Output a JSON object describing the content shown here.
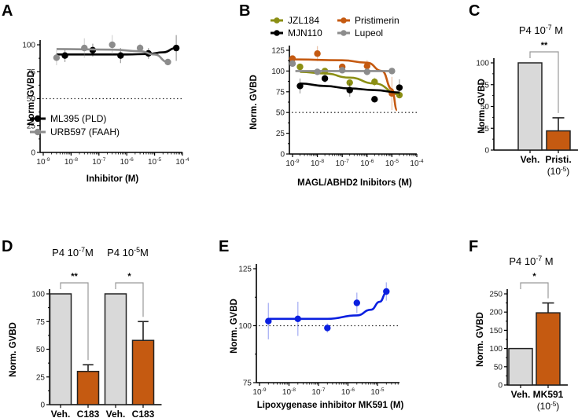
{
  "chart_data": [
    {
      "panel": "A",
      "type": "scatter",
      "xlabel": "Inhibitor (M)",
      "ylabel": "Norm. GVBD",
      "xscale": "log",
      "xlim": [
        1e-09,
        0.0001
      ],
      "ylim": [
        0,
        100
      ],
      "yticks": [
        0,
        25,
        50,
        75,
        100
      ],
      "xtick_labels": [
        "10-9",
        "10-8",
        "10-7",
        "10-6",
        "10-5",
        "10-4"
      ],
      "reference_line": 50,
      "legend": "bottom-left",
      "series": [
        {
          "name": "ML395 (PLD)",
          "color": "#000000",
          "x": [
            6e-09,
            6e-08,
            6e-07,
            6e-06,
            6e-05
          ],
          "y": [
            90,
            95,
            90,
            92,
            97
          ],
          "err": [
            6,
            6,
            7,
            5,
            12
          ],
          "fit": [
            [
              3e-09,
              91
            ],
            [
              1e-06,
              91
            ],
            [
              6e-06,
              91.5
            ],
            [
              2e-05,
              93
            ],
            [
              6e-05,
              97
            ]
          ]
        },
        {
          "name": "URB597 (FAAH)",
          "color": "#8c8c8c",
          "x": [
            3e-09,
            3e-08,
            3e-07,
            3e-06,
            3e-05
          ],
          "y": [
            88,
            97,
            100,
            97,
            84
          ],
          "err": [
            7,
            9,
            9,
            4,
            3
          ],
          "fit": [
            [
              3e-09,
              96
            ],
            [
              3e-07,
              95.5
            ],
            [
              3e-06,
              94
            ],
            [
              1e-05,
              91
            ],
            [
              3e-05,
              84
            ]
          ]
        }
      ]
    },
    {
      "panel": "B",
      "type": "scatter",
      "xlabel": "MAGL/ABHD2 Inibitors (M)",
      "ylabel": "Norm. GVBD",
      "xscale": "log",
      "xlim": [
        1e-09,
        0.0001
      ],
      "ylim": [
        0,
        125
      ],
      "yticks": [
        0,
        25,
        50,
        75,
        100,
        125
      ],
      "xtick_labels": [
        "10-9",
        "10-8",
        "10-7",
        "10-6",
        "10-5",
        "10-4"
      ],
      "reference_line": 50,
      "legend": "top",
      "series": [
        {
          "name": "JZL184",
          "color": "#8b8f14",
          "x": [
            2e-09,
            2e-08,
            2e-07,
            2e-06,
            2e-05
          ],
          "y": [
            105,
            100,
            86,
            87,
            71
          ],
          "err": [
            3,
            3,
            3,
            5,
            3
          ],
          "fit": [
            [
              2e-09,
              99
            ],
            [
              2e-08,
              97
            ],
            [
              2e-07,
              92
            ],
            [
              2e-06,
              85
            ],
            [
              2e-05,
              72
            ]
          ]
        },
        {
          "name": "Pristimerin",
          "color": "#c55a11",
          "x": [
            1e-09,
            1e-08,
            1e-07,
            1e-06,
            1e-05
          ],
          "y": [
            115,
            121,
            105,
            106,
            73
          ],
          "err": [
            2,
            9,
            2,
            7,
            20
          ],
          "fit": [
            [
              1e-09,
              114
            ],
            [
              1e-07,
              113
            ],
            [
              1e-06,
              110
            ],
            [
              4e-06,
              100
            ],
            [
              1e-05,
              78
            ],
            [
              1.6e-05,
              53
            ]
          ]
        },
        {
          "name": "MJN110",
          "color": "#000000",
          "x": [
            2e-09,
            2e-08,
            2e-07,
            2e-06,
            2e-05
          ],
          "y": [
            82,
            91,
            77,
            66,
            80
          ],
          "err": [
            9,
            5,
            8,
            2,
            10
          ],
          "fit": [
            [
              2e-09,
              85
            ],
            [
              2e-08,
              82
            ],
            [
              2e-07,
              79
            ],
            [
              2e-06,
              77
            ],
            [
              2e-05,
              74
            ]
          ]
        },
        {
          "name": "Lupeol",
          "color": "#8c8c8c",
          "x": [
            1e-09,
            1e-08,
            1e-07,
            1e-06,
            1e-05
          ],
          "y": [
            109,
            99,
            101,
            99,
            100
          ],
          "err": [
            2,
            2,
            2,
            2,
            2
          ],
          "fit": [
            [
              1.3e-09,
              100
            ],
            [
              1e-05,
              100
            ]
          ]
        }
      ]
    },
    {
      "panel": "C",
      "type": "bar",
      "title": "P4 10-7 M",
      "ylabel": "Norm. GVBD",
      "ylim": [
        0,
        100
      ],
      "yticks": [
        0,
        25,
        50,
        75,
        100
      ],
      "categories": [
        "Veh.",
        "Pristi."
      ],
      "category_sublabels": [
        "",
        "(10-5)"
      ],
      "values": [
        100,
        22
      ],
      "errors": [
        0,
        15
      ],
      "colors": [
        "#d9d9d9",
        "#c55a11"
      ],
      "significance": "**"
    },
    {
      "panel": "D",
      "type": "bar",
      "titles": [
        "P4 10-7M",
        "P4 10-5M"
      ],
      "ylabel": "Norm. GVBD",
      "ylim": [
        0,
        100
      ],
      "yticks": [
        0,
        25,
        50,
        75,
        100
      ],
      "categories": [
        "Veh.",
        "C183",
        "Veh.",
        "C183"
      ],
      "values": [
        100,
        30,
        100,
        58
      ],
      "errors": [
        0,
        6,
        0,
        17
      ],
      "colors": [
        "#d9d9d9",
        "#c55a11",
        "#d9d9d9",
        "#c55a11"
      ],
      "significance": [
        "**",
        "*"
      ]
    },
    {
      "panel": "E",
      "type": "scatter",
      "xlabel": "Lipoxygenase inhibitor MK591 (M)",
      "ylabel": "Norm. GVBD",
      "xscale": "log",
      "xlim": [
        1e-09,
        5e-05
      ],
      "ylim": [
        75,
        125
      ],
      "yticks": [
        75,
        100,
        125
      ],
      "xtick_labels": [
        "10-9",
        "10-8",
        "10-7",
        "10-6",
        "10-5"
      ],
      "reference_line": 100,
      "series": [
        {
          "name": "MK591",
          "color": "#0a1fe0",
          "x": [
            2e-09,
            2e-08,
            2e-07,
            2e-06,
            2e-05
          ],
          "y": [
            102,
            103,
            99,
            110,
            115
          ],
          "err": [
            8,
            7.5,
            2,
            4.5,
            4
          ],
          "fit": [
            [
              2e-09,
              103
            ],
            [
              2e-07,
              103
            ],
            [
              2e-06,
              104.5
            ],
            [
              6e-06,
              107
            ],
            [
              1.2e-05,
              110.5
            ],
            [
              2e-05,
              114.5
            ]
          ]
        }
      ]
    },
    {
      "panel": "F",
      "type": "bar",
      "title": "P4 10-7 M",
      "ylabel": "Norm. GVBD",
      "ylim": [
        0,
        250
      ],
      "yticks": [
        0,
        50,
        100,
        150,
        200,
        250
      ],
      "categories": [
        "Veh.",
        "MK591"
      ],
      "category_sublabels": [
        "",
        "(10-5)"
      ],
      "values": [
        100,
        198
      ],
      "errors": [
        0,
        27
      ],
      "colors": [
        "#d9d9d9",
        "#c55a11"
      ],
      "significance": "*"
    }
  ],
  "panel_labels": [
    "A",
    "B",
    "C",
    "D",
    "E",
    "F"
  ]
}
